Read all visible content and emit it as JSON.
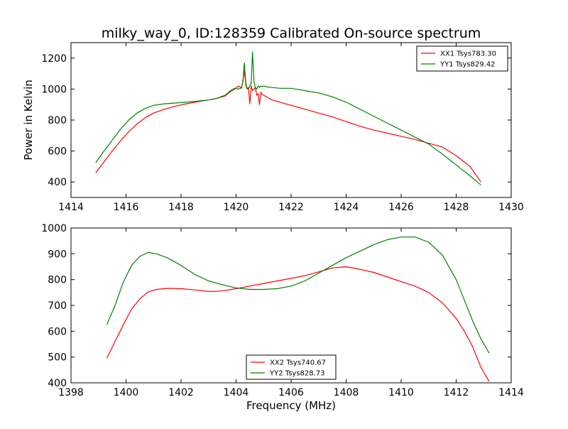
{
  "title": "milky_way_0, ID:128359 Calibrated On-source spectrum",
  "chart_data": [
    {
      "type": "line",
      "title": "milky_way_0, ID:128359 Calibrated On-source spectrum",
      "xlabel": "",
      "ylabel": "Power in Kelvin",
      "xlim": [
        1414,
        1430
      ],
      "ylim": [
        300,
        1300
      ],
      "xticks": [
        1414,
        1416,
        1418,
        1420,
        1422,
        1424,
        1426,
        1428,
        1430
      ],
      "yticks": [
        400,
        600,
        800,
        1000,
        1200
      ],
      "grid": false,
      "legend": "top-right",
      "series": [
        {
          "name": "XX1 Tsys783.30",
          "color": "#ff0000",
          "x": [
            1414.9,
            1415.2,
            1415.5,
            1415.8,
            1416.1,
            1416.4,
            1416.7,
            1417.0,
            1417.4,
            1417.8,
            1418.2,
            1418.6,
            1419.0,
            1419.3,
            1419.6,
            1419.8,
            1419.95,
            1420.1,
            1420.2,
            1420.25,
            1420.3,
            1420.35,
            1420.4,
            1420.45,
            1420.5,
            1420.55,
            1420.6,
            1420.65,
            1420.7,
            1420.75,
            1420.8,
            1420.85,
            1420.9,
            1420.95,
            1421.0,
            1421.1,
            1421.3,
            1421.6,
            1422.0,
            1422.5,
            1423.0,
            1423.5,
            1424.0,
            1424.5,
            1425.0,
            1425.5,
            1426.0,
            1426.5,
            1427.0,
            1427.5,
            1428.0,
            1428.5,
            1428.9
          ],
          "y": [
            460,
            530,
            600,
            665,
            725,
            775,
            815,
            845,
            870,
            890,
            905,
            918,
            930,
            940,
            955,
            985,
            1000,
            1020,
            1005,
            1060,
            1120,
            1030,
            1000,
            1010,
            905,
            1020,
            990,
            1000,
            1010,
            960,
            970,
            900,
            980,
            965,
            960,
            950,
            930,
            915,
            895,
            870,
            845,
            820,
            790,
            760,
            735,
            715,
            695,
            675,
            650,
            625,
            570,
            500,
            400
          ]
        },
        {
          "name": "YY1 Tsys829.42",
          "color": "#008000",
          "x": [
            1414.9,
            1415.2,
            1415.5,
            1415.8,
            1416.1,
            1416.4,
            1416.7,
            1417.0,
            1417.4,
            1417.8,
            1418.2,
            1418.6,
            1419.0,
            1419.3,
            1419.6,
            1419.8,
            1419.95,
            1420.1,
            1420.2,
            1420.25,
            1420.3,
            1420.35,
            1420.4,
            1420.45,
            1420.5,
            1420.55,
            1420.6,
            1420.65,
            1420.7,
            1420.75,
            1420.8,
            1420.85,
            1420.9,
            1420.95,
            1421.0,
            1421.1,
            1421.3,
            1421.6,
            1422.0,
            1422.5,
            1423.0,
            1423.5,
            1424.0,
            1424.5,
            1425.0,
            1425.5,
            1426.0,
            1426.5,
            1427.0,
            1427.5,
            1428.0,
            1428.5,
            1428.9
          ],
          "y": [
            525,
            600,
            670,
            740,
            800,
            845,
            875,
            895,
            905,
            910,
            915,
            922,
            930,
            940,
            960,
            990,
            1005,
            1000,
            1010,
            1050,
            1170,
            1040,
            1005,
            1000,
            1020,
            1040,
            1240,
            1050,
            1010,
            1000,
            1020,
            1010,
            1020,
            1015,
            1020,
            1015,
            1010,
            1005,
            1005,
            990,
            975,
            950,
            915,
            870,
            825,
            780,
            735,
            690,
            645,
            580,
            510,
            440,
            380
          ]
        }
      ]
    },
    {
      "type": "line",
      "title": "",
      "xlabel": "Frequency (MHz)",
      "ylabel": "",
      "xlim": [
        1398,
        1414
      ],
      "ylim": [
        400,
        1000
      ],
      "xticks": [
        1398,
        1400,
        1402,
        1404,
        1406,
        1408,
        1410,
        1412,
        1414
      ],
      "yticks": [
        400,
        500,
        600,
        700,
        800,
        900,
        1000
      ],
      "grid": false,
      "legend": "bottom-center",
      "series": [
        {
          "name": "XX2 Tsys740.67",
          "color": "#ff0000",
          "x": [
            1399.3,
            1399.6,
            1399.9,
            1400.2,
            1400.5,
            1400.8,
            1401.1,
            1401.5,
            1402.0,
            1402.5,
            1403.0,
            1403.5,
            1404.0,
            1404.5,
            1405.0,
            1405.5,
            1406.0,
            1406.5,
            1407.0,
            1407.5,
            1408.0,
            1408.5,
            1409.0,
            1409.5,
            1410.0,
            1410.5,
            1411.0,
            1411.5,
            1412.0,
            1412.3,
            1412.6,
            1412.9,
            1413.2
          ],
          "y": [
            495,
            560,
            625,
            685,
            725,
            752,
            762,
            766,
            765,
            760,
            754,
            756,
            765,
            775,
            785,
            795,
            805,
            815,
            830,
            845,
            850,
            840,
            828,
            810,
            792,
            775,
            750,
            710,
            650,
            600,
            540,
            460,
            405
          ]
        },
        {
          "name": "YY2 Tsys828.73",
          "color": "#008000",
          "x": [
            1399.3,
            1399.6,
            1399.9,
            1400.2,
            1400.5,
            1400.8,
            1401.1,
            1401.5,
            1402.0,
            1402.5,
            1403.0,
            1403.5,
            1404.0,
            1404.5,
            1405.0,
            1405.5,
            1406.0,
            1406.5,
            1407.0,
            1407.5,
            1408.0,
            1408.5,
            1409.0,
            1409.5,
            1410.0,
            1410.5,
            1411.0,
            1411.5,
            1412.0,
            1412.3,
            1412.6,
            1412.9,
            1413.2
          ],
          "y": [
            625,
            700,
            790,
            855,
            890,
            905,
            900,
            885,
            855,
            820,
            795,
            780,
            768,
            762,
            762,
            765,
            775,
            795,
            825,
            855,
            885,
            910,
            935,
            955,
            965,
            965,
            945,
            895,
            800,
            720,
            640,
            570,
            515
          ]
        }
      ]
    }
  ]
}
